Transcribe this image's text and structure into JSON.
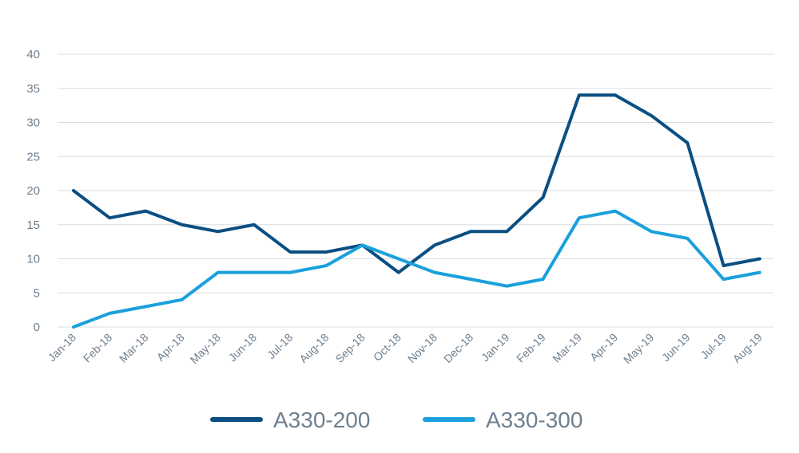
{
  "chart_data": {
    "type": "line",
    "title": "",
    "xlabel": "",
    "ylabel": "",
    "categories": [
      "Jan-18",
      "Feb-18",
      "Mar-18",
      "Apr-18",
      "May-18",
      "Jun-18",
      "Jul-18",
      "Aug-18",
      "Sep-18",
      "Oct-18",
      "Nov-18",
      "Dec-18",
      "Jan-19",
      "Feb-19",
      "Mar-19",
      "Apr-19",
      "May-19",
      "Jun-19",
      "Jul-19",
      "Aug-19"
    ],
    "ylim": [
      0,
      40
    ],
    "yticks": [
      "0",
      "5",
      "10",
      "15",
      "20",
      "25",
      "30",
      "35",
      "40"
    ],
    "grid": true,
    "legend_position": "bottom",
    "series": [
      {
        "name": "A330-200",
        "color": "#0b4f82",
        "values": [
          20,
          16,
          17,
          15,
          14,
          15,
          11,
          11,
          12,
          8,
          12,
          14,
          14,
          19,
          34,
          34,
          31,
          27,
          9,
          10
        ]
      },
      {
        "name": "A330-300",
        "color": "#1aa0dc",
        "values": [
          0,
          2,
          3,
          4,
          8,
          8,
          8,
          9,
          12,
          10,
          8,
          7,
          6,
          7,
          16,
          17,
          14,
          13,
          7,
          8
        ]
      }
    ]
  }
}
